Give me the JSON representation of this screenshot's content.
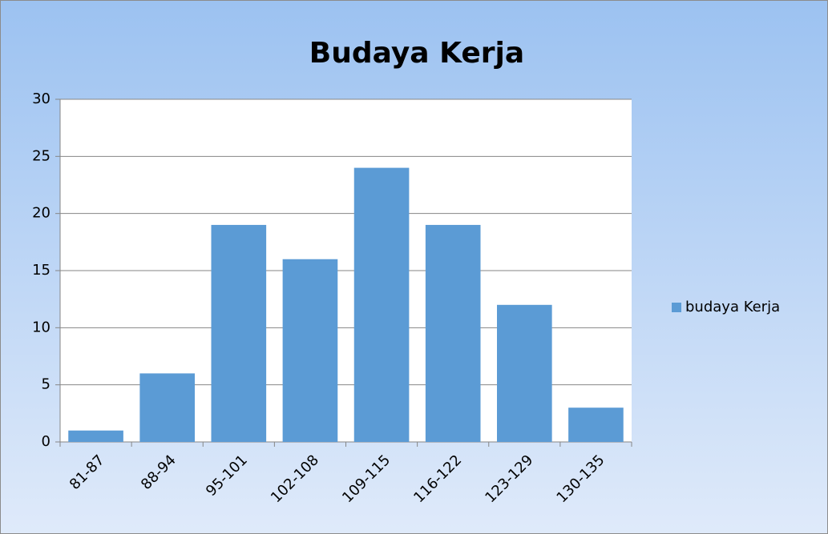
{
  "chart_data": {
    "type": "bar",
    "title": "Budaya Kerja",
    "categories": [
      "81-87",
      "88-94",
      "95-101",
      "102-108",
      "109-115",
      "116-122",
      "123-129",
      "130-135"
    ],
    "series": [
      {
        "name": "budaya Kerja",
        "color": "#5b9bd5",
        "values": [
          1,
          6,
          19,
          16,
          24,
          19,
          12,
          3
        ]
      }
    ],
    "ylim": [
      0,
      30
    ],
    "yticks": [
      0,
      5,
      10,
      15,
      20,
      25,
      30
    ],
    "grid": true,
    "legend": "right"
  }
}
